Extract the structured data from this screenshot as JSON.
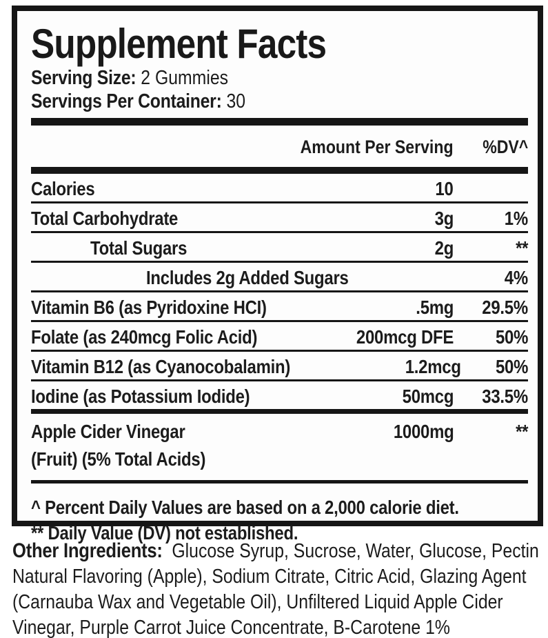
{
  "panel": {
    "title": "Supplement Facts",
    "serving_size_label": "Serving Size:",
    "serving_size_value": "2 Gummies",
    "servings_per_container_label": "Servings Per Container:",
    "servings_per_container_value": "30",
    "columns": {
      "amount_header": "Amount Per Serving",
      "dv_header": "%DV^"
    },
    "rows": [
      {
        "name": "Calories",
        "amount": "10",
        "dv": "",
        "indent": 0
      },
      {
        "name": "Total Carbohydrate",
        "amount": "3g",
        "dv": "1%",
        "indent": 0
      },
      {
        "name": "Total Sugars",
        "amount": "2g",
        "dv": "**",
        "indent": 1
      },
      {
        "name": "Includes 2g Added Sugars",
        "amount": "",
        "dv": "4%",
        "indent": 2
      },
      {
        "name": "Vitamin B6 (as Pyridoxine HCI)",
        "amount": ".5mg",
        "dv": "29.5%",
        "indent": 0
      },
      {
        "name": "Folate (as 240mcg Folic Acid)",
        "amount": "200mcg DFE",
        "dv": "50%",
        "indent": 0
      },
      {
        "name": "Vitamin B12 (as Cyanocobalamin)",
        "amount": "1.2mcg",
        "dv": "50%",
        "indent": 0
      },
      {
        "name": "Iodine (as Potassium Iodide)",
        "amount": "50mcg",
        "dv": "33.5%",
        "indent": 0
      }
    ],
    "acv_row": {
      "name": "Apple Cider Vinegar",
      "amount": "1000mg",
      "dv": "**",
      "name_line2": "(Fruit) (5% Total Acids)"
    },
    "footnotes": [
      "^ Percent Daily Values are based on a 2,000 calorie diet.",
      "** Daily Value (DV) not established."
    ]
  },
  "other_ingredients": {
    "label": "Other Ingredients:",
    "lines": [
      "Glucose Syrup, Sucrose, Water, Glucose, Pectin",
      "Natural Flavoring (Apple), Sodium Citrate, Citric Acid, Glazing Agent",
      "(Carnauba Wax and Vegetable Oil), Unfiltered Liquid Apple Cider",
      "Vinegar, Purple Carrot Juice Concentrate, B-Carotene 1%"
    ]
  },
  "colors": {
    "ink": "#1c1c1c",
    "rule": "#161616",
    "panel_background": "#fdfdfd",
    "page_background": "#ffffff"
  }
}
